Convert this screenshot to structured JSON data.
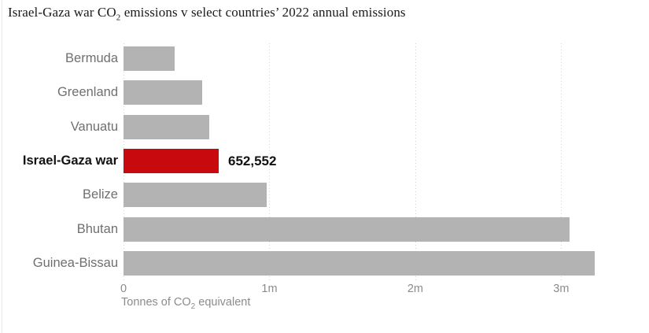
{
  "chart_data": {
    "type": "bar",
    "orientation": "horizontal",
    "title": "Israel-Gaza war CO2 emissions v select countries’ 2022 annual emissions",
    "title_parts": {
      "pre": "Israel-Gaza war CO",
      "sub": "2",
      "post": " emissions v select countries’ 2022 annual emissions"
    },
    "categories": [
      "Bermuda",
      "Greenland",
      "Vanuatu",
      "Israel-Gaza war",
      "Belize",
      "Bhutan",
      "Guinea-Bissau"
    ],
    "values": [
      350000,
      540000,
      590000,
      652552,
      980000,
      3060000,
      3230000
    ],
    "highlight_index": 3,
    "highlight_value_label": "652,552",
    "bar_color": "#b3b3b4",
    "highlight_color": "#c8090d",
    "label_color": "#6f6f6f",
    "highlight_label_color": "#121212",
    "axis_text_color": "#8c8c8c",
    "xlabel_parts": {
      "pre": "Tonnes of CO",
      "sub": "2",
      "post": " equivalent"
    },
    "xlabel": "Tonnes of CO2 equivalent",
    "xticks": [
      {
        "label": "0",
        "value": 0
      },
      {
        "label": "1m",
        "value": 1000000
      },
      {
        "label": "2m",
        "value": 2000000
      },
      {
        "label": "3m",
        "value": 3000000
      }
    ],
    "xlim": [
      0,
      3300000
    ],
    "grid": "dotted-vertical",
    "legend": "none"
  }
}
